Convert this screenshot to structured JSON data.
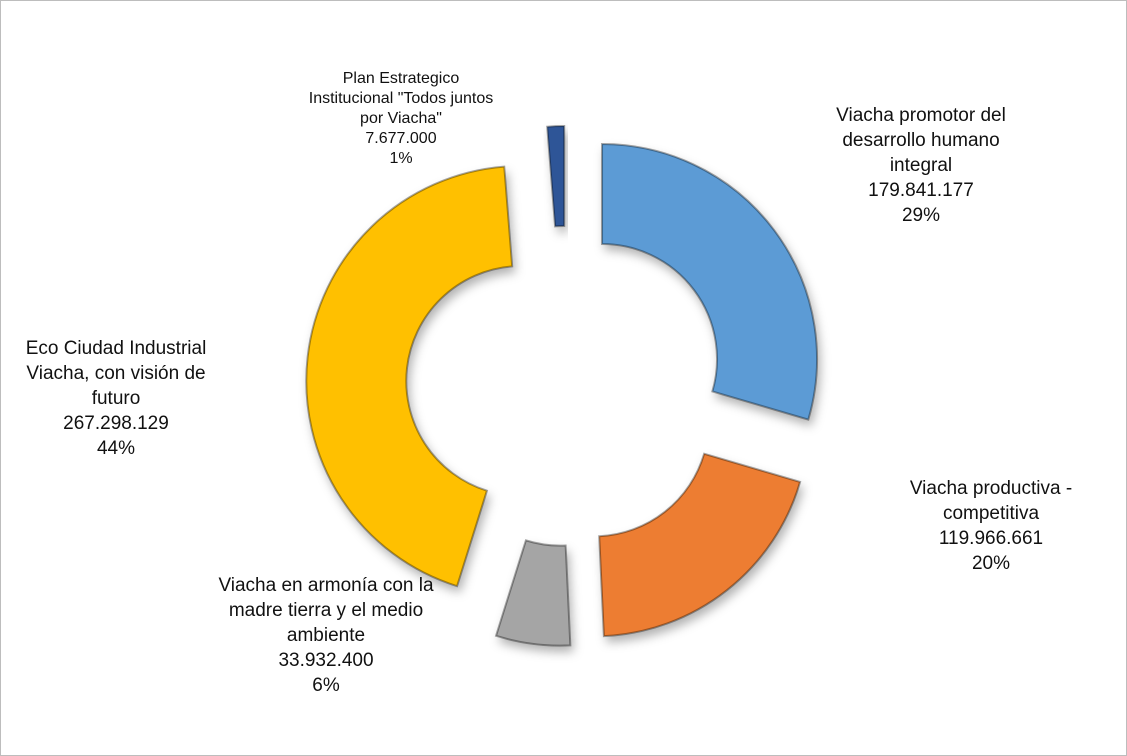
{
  "chart_data": {
    "type": "donut",
    "categories": [
      "Viacha promotor del desarrollo humano integral",
      "Viacha productiva - competitiva",
      "Viacha en armonía con la madre tierra y el medio ambiente",
      "Eco Ciudad Industrial Viacha, con visión de futuro",
      "Plan Estrategico Institucional \"Todos juntos por Viacha\""
    ],
    "values": [
      179841177,
      119966661,
      33932400,
      267298129,
      7677000
    ],
    "value_labels": [
      "179.841.177",
      "119.966.661",
      "33.932.400",
      "267.298.129",
      "7.677.000"
    ],
    "percent_labels": [
      "29%",
      "20%",
      "6%",
      "44%",
      "1%"
    ],
    "colors": [
      "#5b9bd5",
      "#ed7d31",
      "#a5a5a5",
      "#ffc000",
      "#2f5597"
    ]
  }
}
